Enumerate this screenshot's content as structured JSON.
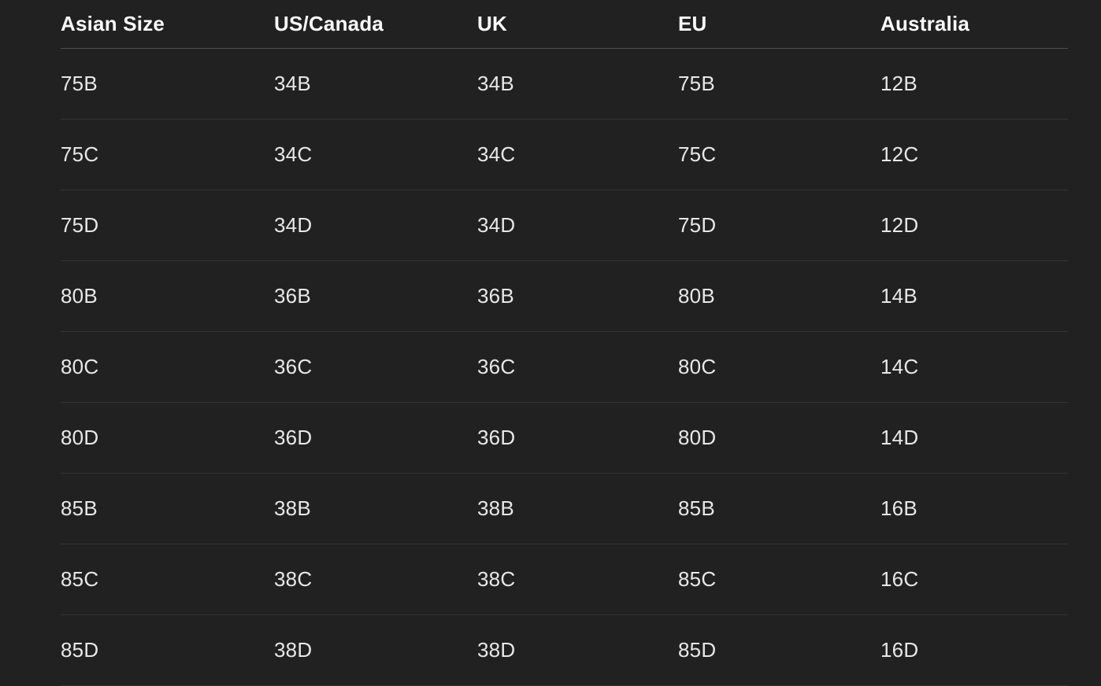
{
  "size_chart": {
    "columns": [
      "Asian Size",
      "US/Canada",
      "UK",
      "EU",
      "Australia"
    ],
    "rows": [
      [
        "75B",
        "34B",
        "34B",
        "75B",
        "12B"
      ],
      [
        "75C",
        "34C",
        "34C",
        "75C",
        "12C"
      ],
      [
        "75D",
        "34D",
        "34D",
        "75D",
        "12D"
      ],
      [
        "80B",
        "36B",
        "36B",
        "80B",
        "14B"
      ],
      [
        "80C",
        "36C",
        "36C",
        "80C",
        "14C"
      ],
      [
        "80D",
        "36D",
        "36D",
        "80D",
        "14D"
      ],
      [
        "85B",
        "38B",
        "38B",
        "85B",
        "16B"
      ],
      [
        "85C",
        "38C",
        "38C",
        "85C",
        "16C"
      ],
      [
        "85D",
        "38D",
        "38D",
        "85D",
        "16D"
      ]
    ],
    "colors": {
      "background": "#212121",
      "header_text": "#fafafa",
      "body_text": "#e8e8e8",
      "header_divider": "#4d4d4d",
      "row_divider": "#333333"
    }
  }
}
